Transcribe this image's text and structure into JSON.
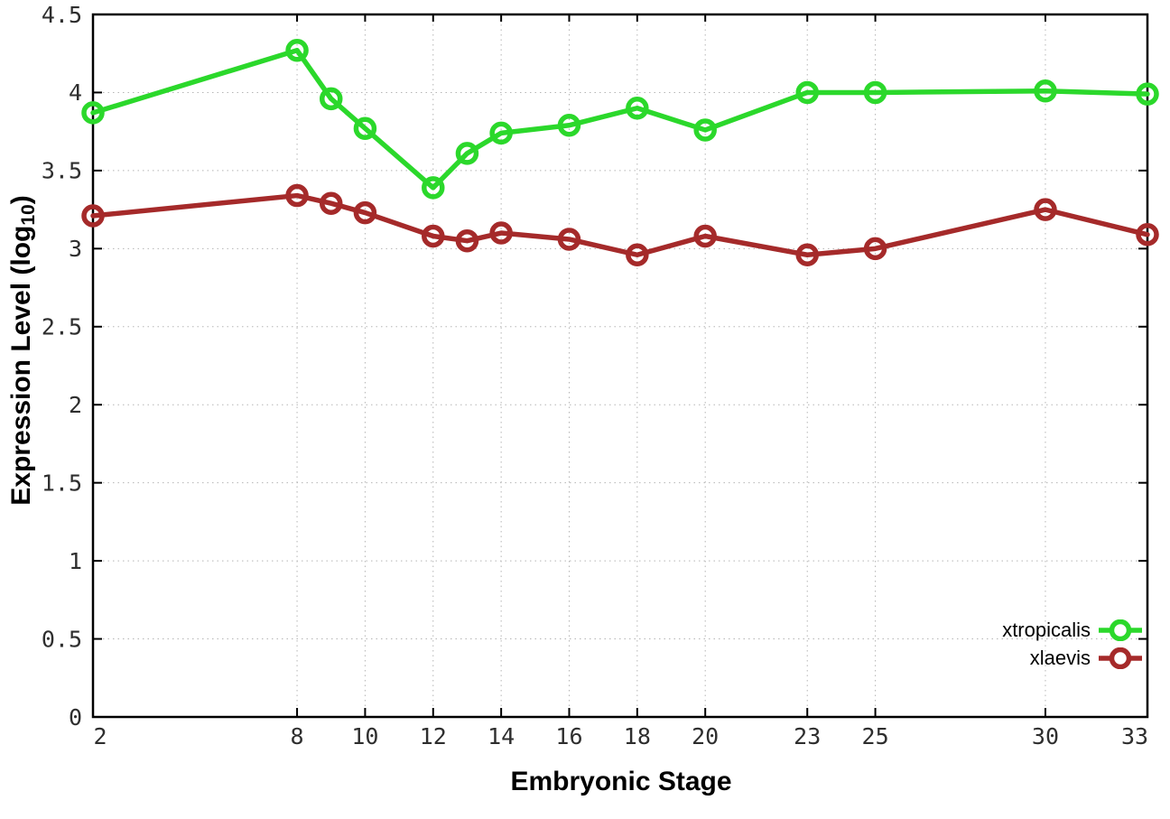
{
  "chart_data": {
    "type": "line",
    "title": "",
    "xlabel": "Embryonic Stage",
    "ylabel": "Expression Level (log10)",
    "ylabel_parts": {
      "prefix": "Expression Level (log",
      "sub": "10",
      "suffix": ")"
    },
    "x": [
      2,
      8,
      9,
      10,
      12,
      13,
      14,
      16,
      18,
      20,
      23,
      25,
      30,
      33
    ],
    "x_tick_labels": [
      "2",
      "8",
      "10",
      "12",
      "14",
      "16",
      "18",
      "20",
      "23",
      "25",
      "30",
      "33"
    ],
    "y_tick_labels": [
      "0",
      "0.5",
      "1",
      "1.5",
      "2",
      "2.5",
      "3",
      "3.5",
      "4",
      "4.5"
    ],
    "y_ticks": [
      0,
      0.5,
      1,
      1.5,
      2,
      2.5,
      3,
      3.5,
      4,
      4.5
    ],
    "xlim": [
      2,
      33
    ],
    "ylim": [
      0,
      4.5
    ],
    "grid": true,
    "legend_position": "inside-bottom-right",
    "marker": "open-circle",
    "axis_color": "#000000",
    "grid_color": "#b5b5b5",
    "tick_label_color": "#2e2e2e",
    "series": [
      {
        "name": "xtropicalis",
        "color": "#2bd82b",
        "values": [
          3.87,
          4.27,
          3.96,
          3.77,
          3.39,
          3.61,
          3.74,
          3.79,
          3.9,
          3.76,
          4.0,
          4.0,
          4.01,
          3.99
        ]
      },
      {
        "name": "xlaevis",
        "color": "#a52a2a",
        "values": [
          3.21,
          3.34,
          3.29,
          3.23,
          3.08,
          3.05,
          3.1,
          3.06,
          2.96,
          3.08,
          2.96,
          3.0,
          3.25,
          3.09
        ]
      }
    ]
  }
}
